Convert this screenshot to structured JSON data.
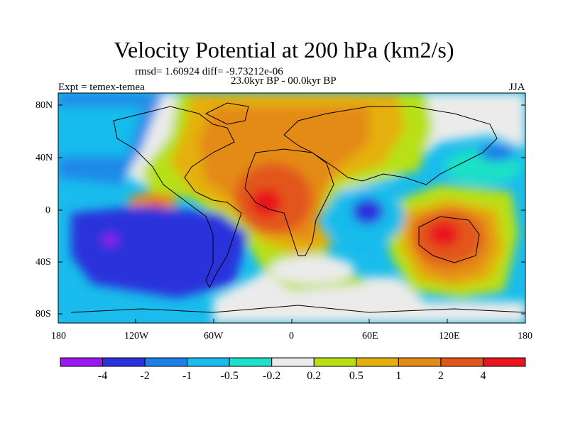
{
  "title": "Velocity Potential at 200 hPa (km2/s)",
  "stats": "rmsd= 1.60924 diff= -9.73212e-06",
  "period": "23.0kyr BP - 00.0kyr BP",
  "experiment": "Expt = temex-temea",
  "season": "JJA",
  "lat_ticks": [
    "80N",
    "40N",
    "0",
    "40S",
    "80S"
  ],
  "lon_ticks": [
    "180",
    "120W",
    "60W",
    "0",
    "60E",
    "120E",
    "180"
  ],
  "colorbar": {
    "colors": [
      "#9c18f0",
      "#2b31dc",
      "#1c80e8",
      "#19bcec",
      "#1de0c8",
      "#ebebeb",
      "#b8e014",
      "#e4b010",
      "#e48a16",
      "#e2561a",
      "#e8161c"
    ],
    "labels": [
      "-4",
      "-2",
      "-1",
      "-0.5",
      "-0.2",
      "0.2",
      "0.5",
      "1",
      "2",
      "4"
    ]
  }
}
